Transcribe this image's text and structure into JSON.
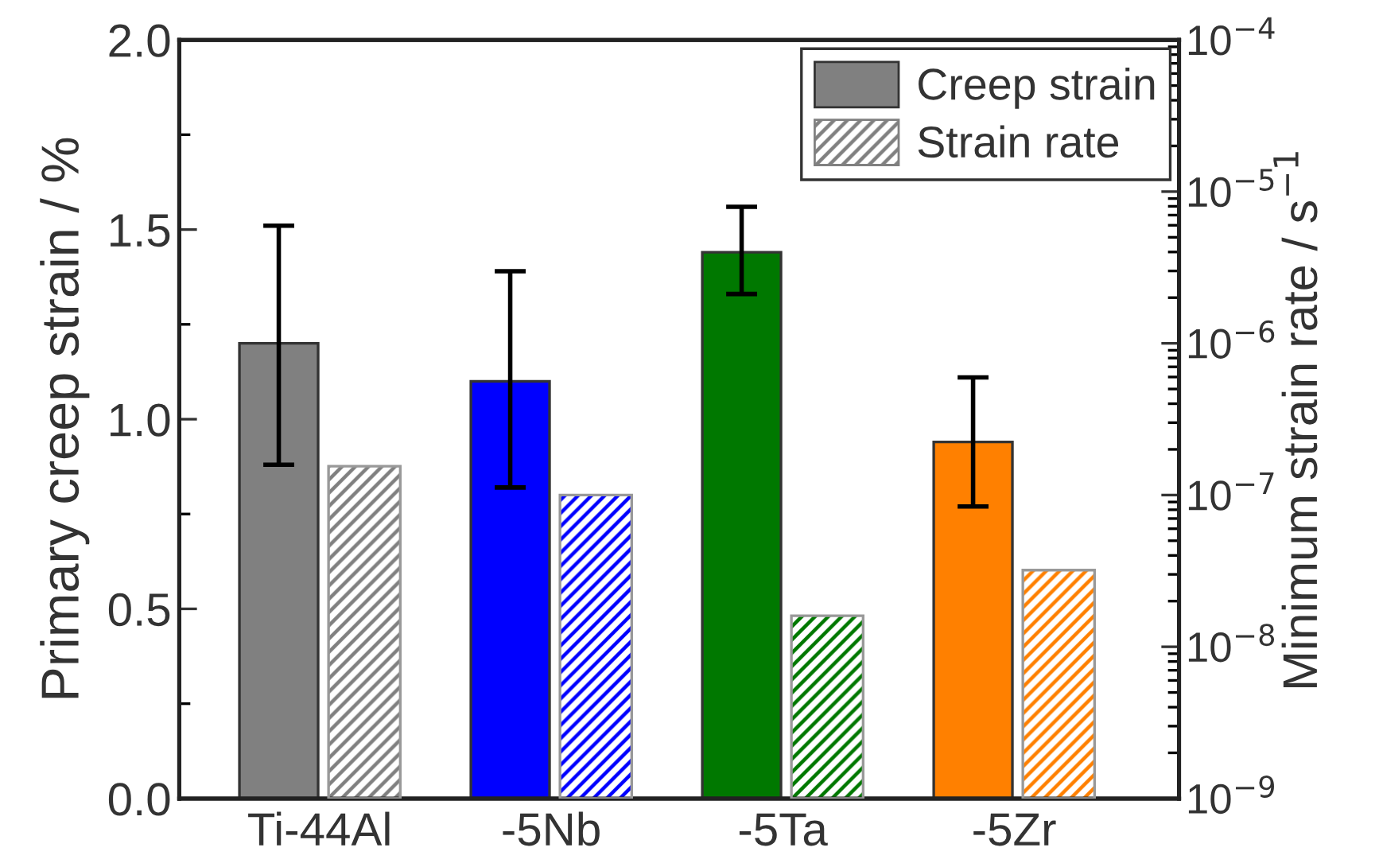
{
  "chart_data": {
    "type": "bar",
    "categories": [
      "Ti-44Al",
      "-5Nb",
      "-5Ta",
      "-5Zr"
    ],
    "ylabel": "Primary creep strain / %",
    "y2label": "Minimum strain rate / s$^{−1}$",
    "ylim": [
      0,
      2.0
    ],
    "yticks": [
      {
        "value": 0,
        "label": "0.0"
      },
      0.5,
      {
        "value": 1,
        "label": "1.0"
      },
      1.5,
      {
        "value": 2,
        "label": "2.0"
      }
    ],
    "y2lim": [
      1e-09,
      0.0001
    ],
    "y2ticks": [
      {
        "value": 1e-09,
        "label": "10$^{−9}$"
      },
      {
        "value": 1e-08,
        "label": "10$^{−8}$"
      },
      {
        "value": 1e-07,
        "label": "10$^{−7}$"
      },
      {
        "value": 1e-06,
        "label": "10$^{−6}$"
      },
      {
        "value": 1e-05,
        "label": "10$^{−5}$"
      },
      {
        "value": 0.0001,
        "label": "10$^{−4}$"
      }
    ],
    "log": "y2",
    "grid": false,
    "legend": "top right",
    "series": [
      {
        "name": "Creep strain",
        "color": "#808080",
        "colors": [
          "#808080",
          "#0000ff",
          "#007800",
          "#ff8000"
        ],
        "values": [
          1.2,
          1.1,
          1.44,
          0.94
        ],
        "errors": [
          [
            0.88,
            1.51
          ],
          [
            0.82,
            1.39
          ],
          [
            1.33,
            1.56
          ],
          [
            0.77,
            1.11
          ]
        ]
      },
      {
        "name": "Strain rate",
        "axis": "y2",
        "color": "#808080",
        "colors": [
          "#808080",
          "#0000ff",
          "#007800",
          "#ff8000"
        ],
        "values": [
          1.55e-07,
          1e-07,
          1.6e-08,
          3.2e-08
        ]
      }
    ]
  }
}
